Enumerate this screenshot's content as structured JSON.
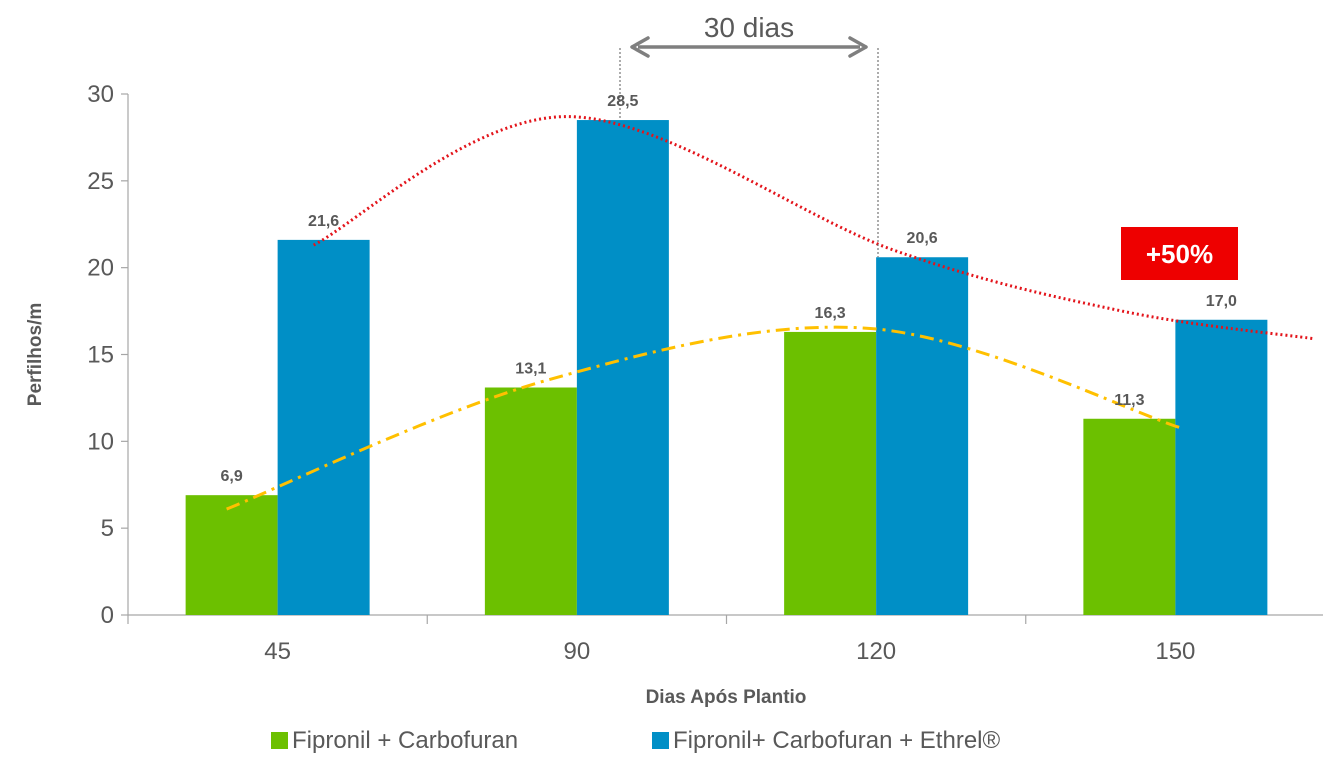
{
  "chart_data": {
    "type": "bar",
    "categories": [
      "45",
      "90",
      "120",
      "150"
    ],
    "series": [
      {
        "name": "Fipronil + Carbofuran",
        "values": [
          6.9,
          13.1,
          16.3,
          11.3
        ],
        "labels": [
          "6,9",
          "13,1",
          "16,3",
          "11,3"
        ],
        "color": "#6cc000"
      },
      {
        "name": "Fipronil+ Carbofuran + Ethrel®",
        "values": [
          21.6,
          28.5,
          20.6,
          17.0
        ],
        "labels": [
          "21,6",
          "28,5",
          "20,6",
          "17,0"
        ],
        "color": "#008fc6"
      }
    ],
    "xlabel": "Dias Após Plantio",
    "ylabel": "Perfilhos/m",
    "ylim": [
      0,
      30
    ],
    "yticks": [
      0,
      5,
      10,
      15,
      20,
      25,
      30
    ],
    "grid": false,
    "legend": "bottom",
    "trendlines": [
      {
        "series": "Fipronil+ Carbofuran + Ethrel®",
        "style": "dotted",
        "color": "#e3141b"
      },
      {
        "series": "Fipronil + Carbofuran",
        "style": "dash-dot",
        "color": "#ffc000"
      }
    ],
    "annotations": {
      "interval_label": "30 dias",
      "badge_label": "+50%",
      "badge_color": "#ee0000"
    }
  }
}
